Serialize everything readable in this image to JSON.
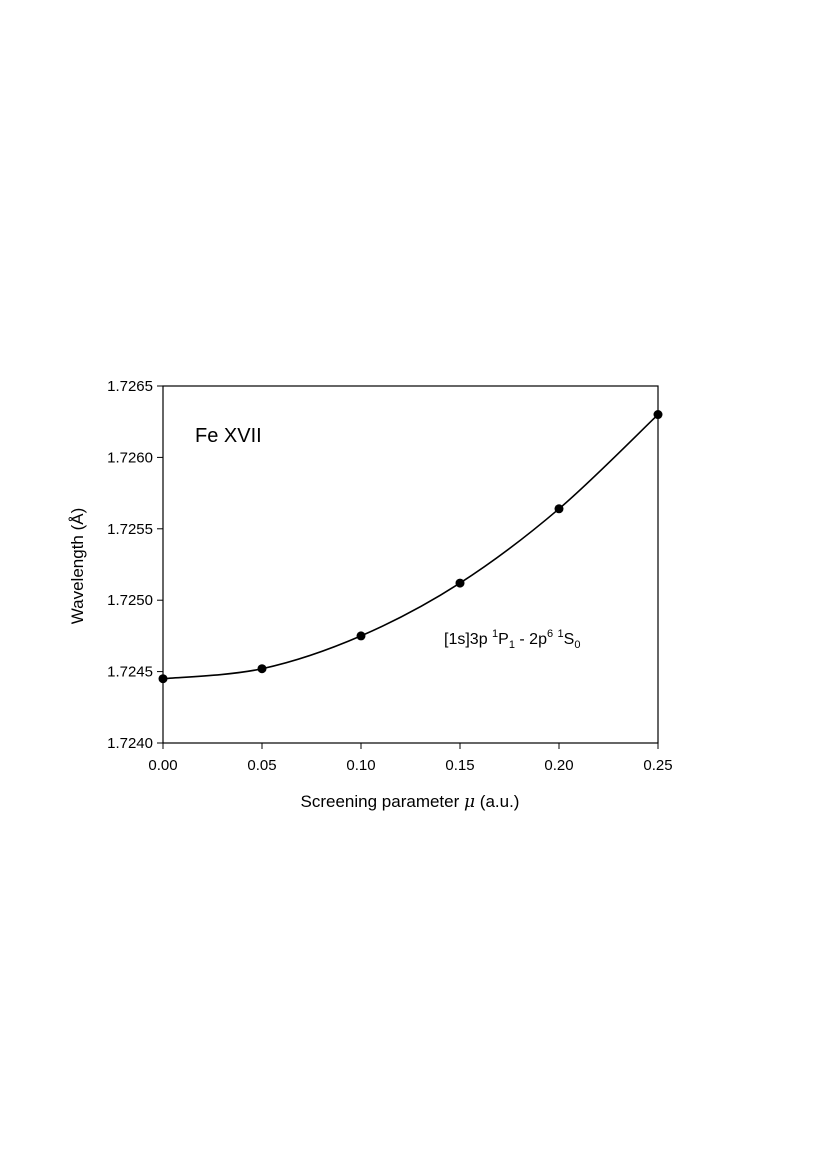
{
  "chart_data": {
    "type": "line",
    "x": [
      0.0,
      0.05,
      0.1,
      0.15,
      0.2,
      0.25
    ],
    "series": [
      {
        "values": [
          1.72445,
          1.72452,
          1.72475,
          1.72512,
          1.72564,
          1.7263
        ]
      }
    ],
    "xlim": [
      0.0,
      0.25
    ],
    "ylim": [
      1.724,
      1.7265
    ],
    "xticks": [
      "0.00",
      "0.05",
      "0.10",
      "0.15",
      "0.20",
      "0.25"
    ],
    "yticks": [
      "1.7240",
      "1.7245",
      "1.7250",
      "1.7255",
      "1.7260",
      "1.7265"
    ],
    "xlabel": {
      "prefix": "Screening parameter ",
      "symbol": "μ",
      "suffix": " (a.u.)"
    },
    "ylabel": {
      "prefix": "Wavelength (",
      "unit": "Å",
      "suffix": ")"
    },
    "grid": false,
    "markers": "filled-circle",
    "annotations": {
      "ion": "Fe XVII",
      "transition": {
        "p1": "[1s]3p ",
        "sup1": "1",
        "p2": "P",
        "sub1": "1",
        "p3": " - 2p",
        "sup2": "6",
        "p4": " ",
        "sup3": "1",
        "p5": "S",
        "sub2": "0"
      }
    }
  }
}
